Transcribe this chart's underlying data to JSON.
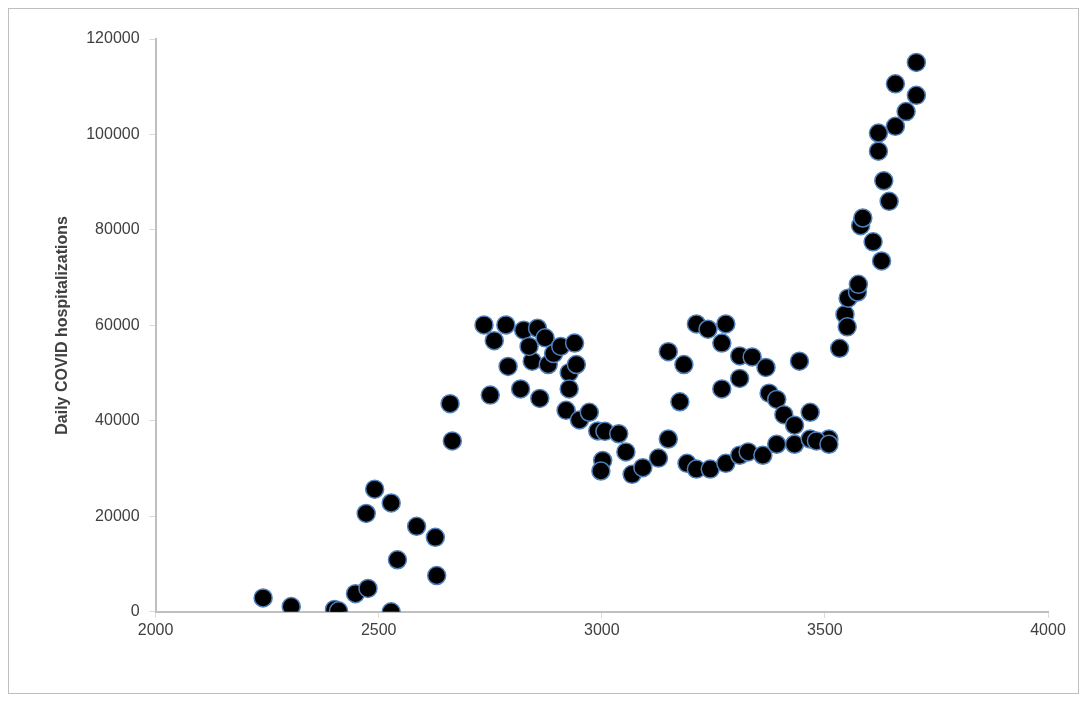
{
  "chart_data": {
    "type": "scatter",
    "ylabel": "Daily COVID hospitalizations",
    "xlim": [
      2000,
      4000
    ],
    "xticks": [
      2000,
      2500,
      3000,
      3500,
      4000
    ],
    "ylim": [
      0,
      120000
    ],
    "yticks": [
      0,
      20000,
      40000,
      60000,
      80000,
      100000,
      120000
    ],
    "grid": false,
    "marker": "circle",
    "series": [
      {
        "color": "#000000",
        "x": [
          2241,
          2304,
          2401,
          2410,
          2448,
          2476,
          2472,
          2491,
          2528,
          2542,
          2528,
          2585,
          2627,
          2630,
          2660,
          2665,
          2750,
          2790,
          2818,
          2861,
          2844,
          2880,
          2927,
          2927,
          2920,
          2950,
          2991,
          3002,
          2998,
          2736,
          2759,
          2785,
          2825,
          2837,
          2856,
          2873,
          2892,
          2908,
          2939,
          2943,
          2972,
          3007,
          3038,
          3054,
          3068,
          3092,
          3127,
          3149,
          3175,
          3191,
          3212,
          3243,
          3278,
          3309,
          3328,
          3361,
          3392,
          3432,
          3467,
          3509,
          3149,
          3184,
          3212,
          3238,
          3278,
          3269,
          3309,
          3337,
          3368,
          3309,
          3269,
          3375,
          3392,
          3408,
          3432,
          3443,
          3467,
          3481,
          3509,
          3533,
          3545,
          3550,
          3552,
          3573,
          3575,
          3580,
          3585,
          3608,
          3620,
          3627,
          3632,
          3644,
          3658,
          3682,
          3705,
          3705,
          3658,
          3620
        ],
        "values": [
          2900,
          1100,
          500,
          200,
          3800,
          4900,
          20600,
          25700,
          22800,
          10900,
          0,
          17900,
          15600,
          7600,
          43600,
          35800,
          45400,
          51400,
          46700,
          44700,
          52500,
          51800,
          50100,
          46700,
          42200,
          40200,
          37900,
          31700,
          29500,
          60100,
          56800,
          60100,
          59000,
          55600,
          59400,
          57400,
          54100,
          55600,
          56300,
          51800,
          41800,
          37800,
          37300,
          33500,
          28800,
          30200,
          32200,
          36200,
          44000,
          31100,
          29900,
          29900,
          31100,
          32800,
          33500,
          32800,
          35100,
          35100,
          36200,
          36200,
          54500,
          51800,
          60300,
          59200,
          60300,
          56300,
          53600,
          53400,
          51200,
          48900,
          46700,
          45800,
          44500,
          41300,
          39100,
          52500,
          41800,
          35800,
          35100,
          55200,
          62300,
          59700,
          65700,
          67000,
          68600,
          80900,
          82500,
          77500,
          96500,
          73500,
          90300,
          86000,
          101700,
          104800,
          115100,
          108200,
          110600,
          100300
        ]
      }
    ]
  }
}
